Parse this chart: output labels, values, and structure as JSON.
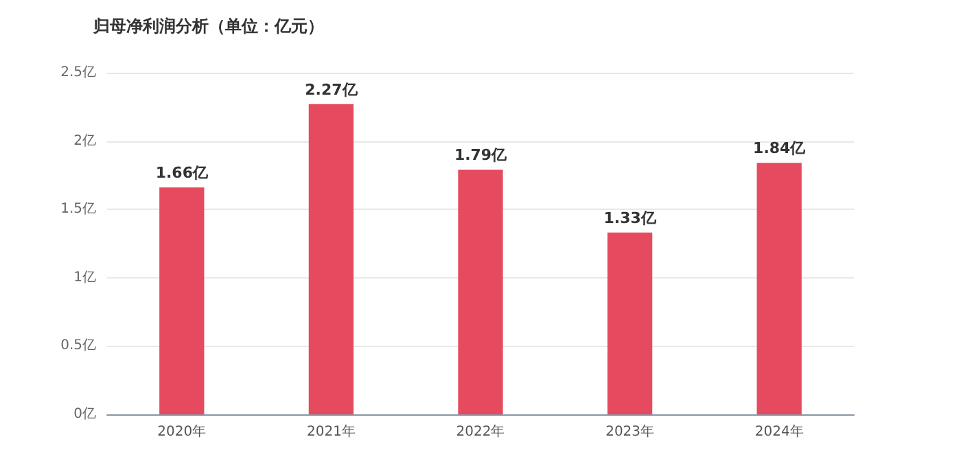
{
  "chart_data": {
    "type": "bar",
    "title": "归母净利润分析（单位：亿元）",
    "categories": [
      "2020年",
      "2021年",
      "2022年",
      "2023年",
      "2024年"
    ],
    "values": [
      1.66,
      2.27,
      1.79,
      1.33,
      1.84
    ],
    "value_labels": [
      "1.66亿",
      "2.27亿",
      "1.79亿",
      "1.33亿",
      "1.84亿"
    ],
    "color": "#e64a5f",
    "ylim": [
      0,
      2.5
    ],
    "yticks": [
      {
        "value": 0,
        "label": "0亿"
      },
      {
        "value": 0.5,
        "label": "0.5亿"
      },
      {
        "value": 1,
        "label": "1亿"
      },
      {
        "value": 1.5,
        "label": "1.5亿"
      },
      {
        "value": 2,
        "label": "2亿"
      },
      {
        "value": 2.5,
        "label": "2.5亿"
      }
    ],
    "grid": "y"
  }
}
